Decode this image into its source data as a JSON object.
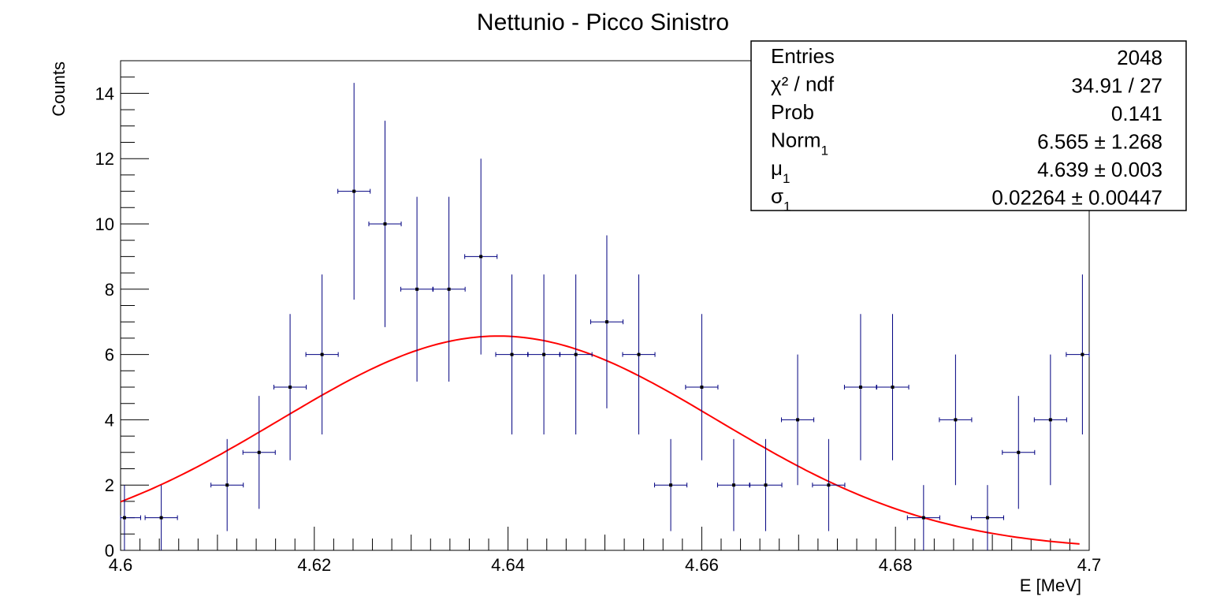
{
  "chart_data": {
    "type": "scatter",
    "title": "Nettunio - Picco Sinistro",
    "xlabel": "E [MeV]",
    "ylabel": "Counts",
    "xlim": [
      4.6,
      4.7
    ],
    "ylim": [
      0,
      15
    ],
    "x_ticks": [
      "4.6",
      "4.62",
      "4.64",
      "4.66",
      "4.68",
      "4.7"
    ],
    "y_ticks": [
      "0",
      "2",
      "4",
      "6",
      "8",
      "10",
      "12",
      "14"
    ],
    "bin_half_width": 0.00167,
    "series": [
      {
        "x": [
          4.6004,
          4.6042,
          4.611,
          4.6143,
          4.6175,
          4.6208,
          4.6241,
          4.6273,
          4.6306,
          4.6339,
          4.6372,
          4.6404,
          4.6437,
          4.647,
          4.6502,
          4.6535,
          4.6568,
          4.66,
          4.6633,
          4.6666,
          4.6699,
          4.6731,
          4.6764,
          4.6797,
          4.6829,
          4.6862,
          4.6895,
          4.6927,
          4.696,
          4.6993
        ],
        "y": [
          1,
          1,
          2,
          3,
          5,
          6,
          11,
          10,
          8,
          8,
          9,
          6,
          6,
          6,
          7,
          6,
          2,
          5,
          2,
          2,
          4,
          2,
          5,
          5,
          1,
          4,
          1,
          3,
          4,
          6
        ],
        "y_err": [
          1,
          1,
          1.41,
          1.73,
          2.24,
          2.45,
          3.32,
          3.16,
          2.83,
          2.83,
          3,
          2.45,
          2.45,
          2.45,
          2.65,
          2.45,
          1.41,
          2.24,
          1.41,
          1.41,
          2,
          1.41,
          2.24,
          2.24,
          1,
          2,
          1,
          1.73,
          2,
          2.45
        ]
      }
    ],
    "fit": {
      "function": "gaussian",
      "norm": 6.565,
      "mu": 4.639,
      "sigma": 0.02264,
      "x_range": [
        4.6,
        4.699
      ],
      "color": "#ff0000"
    },
    "marker_color": "#000080",
    "grid": false,
    "stats_box": {
      "placement": "top-right",
      "rows": [
        {
          "label": "Entries",
          "sub": "",
          "value": "2048"
        },
        {
          "label": "χ² / ndf",
          "sub": "",
          "value": "34.91 / 27"
        },
        {
          "label": "Prob",
          "sub": "",
          "value": "0.141"
        },
        {
          "label": "Norm",
          "sub": "1",
          "value": "6.565 ± 1.268"
        },
        {
          "label": "μ",
          "sub": "1",
          "value": "4.639 ± 0.003"
        },
        {
          "label": "σ",
          "sub": "1",
          "value": "0.02264 ± 0.00447"
        }
      ]
    }
  }
}
